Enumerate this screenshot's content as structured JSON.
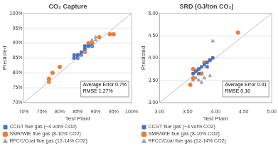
{
  "chart_data": [
    {
      "type": "scatter",
      "title": "CO₂ Capture",
      "x_label": "Test Plant",
      "y_label": "Predicted",
      "xlim": [
        70,
        100
      ],
      "ylim": [
        70,
        100
      ],
      "xticks": [
        {
          "value": 70,
          "label": "70%"
        },
        {
          "value": 75,
          "label": "75%"
        },
        {
          "value": 80,
          "label": "80%"
        },
        {
          "value": 85,
          "label": "85%"
        },
        {
          "value": 90,
          "label": "90%"
        },
        {
          "value": 95,
          "label": "95%"
        },
        {
          "value": 100,
          "label": "100%"
        }
      ],
      "yticks": [
        {
          "value": 70,
          "label": "70%"
        },
        {
          "value": 75,
          "label": "75%"
        },
        {
          "value": 80,
          "label": "80%"
        },
        {
          "value": 85,
          "label": "85%"
        },
        {
          "value": 90,
          "label": "90%"
        },
        {
          "value": 95,
          "label": "95%"
        },
        {
          "value": 100,
          "label": "100%"
        }
      ],
      "grid": true,
      "legend": "bottom",
      "annotation": [
        "Average Error 0.7%",
        "RMSE 1.27%"
      ],
      "reference_line": {
        "x": [
          70,
          100
        ],
        "y": [
          70,
          100
        ]
      },
      "series": [
        {
          "name": "CCGT flue gas (~4 vol% CO2)",
          "color": "#4472c4",
          "marker": "square",
          "x": [
            84,
            85,
            86,
            86,
            87,
            88,
            89,
            85,
            84,
            87
          ],
          "values": [
            85,
            85,
            86,
            87,
            88,
            89,
            89,
            86,
            86,
            89
          ]
        },
        {
          "name": "SMR/WtE flue gas (8-10% CO2)",
          "color": "#ed7d31",
          "marker": "circle",
          "x": [
            77,
            77,
            78,
            80,
            87,
            89,
            91,
            94,
            95,
            85,
            88
          ],
          "values": [
            78,
            77,
            80,
            82,
            87,
            90,
            92,
            93,
            93,
            86,
            90
          ]
        },
        {
          "name": "RFCC/Coal flue gas (12-14% CO2)",
          "color": "#a5a5a5",
          "marker": "triangle",
          "x": [
            88,
            89,
            89,
            90,
            90,
            91,
            84
          ],
          "values": [
            89,
            91,
            90,
            92,
            91,
            92,
            85
          ]
        }
      ]
    },
    {
      "type": "scatter",
      "title": "SRD (GJ/ton CO₂)",
      "x_label": "Test Plant",
      "y_label": "Predicted",
      "xlim": [
        3,
        5
      ],
      "ylim": [
        3,
        5
      ],
      "xticks": [
        {
          "value": 3,
          "label": "3.00"
        },
        {
          "value": 3.5,
          "label": "3.50"
        },
        {
          "value": 4,
          "label": "4.00"
        },
        {
          "value": 4.5,
          "label": "4.50"
        },
        {
          "value": 5,
          "label": "5.00"
        }
      ],
      "yticks": [
        {
          "value": 3,
          "label": "3.00"
        },
        {
          "value": 3.5,
          "label": "3.50"
        },
        {
          "value": 4,
          "label": "4.00"
        },
        {
          "value": 4.5,
          "label": "4.50"
        },
        {
          "value": 5,
          "label": "5.00"
        }
      ],
      "grid": true,
      "legend": "bottom",
      "annotation": [
        "Average Error 0.01",
        "RMSE 0.16"
      ],
      "reference_line": {
        "x": [
          3,
          5
        ],
        "y": [
          3,
          5
        ]
      },
      "series": [
        {
          "name": "CCGT flue gas (~4 vol% CO2)",
          "color": "#4472c4",
          "marker": "square",
          "x": [
            3.6,
            3.65,
            3.7,
            3.75,
            3.8,
            3.85,
            3.9,
            3.95,
            3.7,
            3.85
          ],
          "values": [
            3.65,
            3.7,
            3.75,
            3.8,
            3.85,
            3.9,
            3.95,
            4.0,
            3.65,
            3.8
          ]
        },
        {
          "name": "SMR/WtE flue gas (8-10% CO2)",
          "color": "#ed7d31",
          "marker": "circle",
          "x": [
            3.55,
            3.6,
            3.65,
            3.7,
            3.8,
            3.9,
            4.4,
            3.6,
            3.75
          ],
          "values": [
            3.4,
            3.55,
            3.7,
            3.75,
            3.9,
            3.95,
            4.57,
            3.75,
            3.65
          ]
        },
        {
          "name": "RFCC/Coal flue gas (12-14% CO2)",
          "color": "#a5a5a5",
          "marker": "triangle",
          "x": [
            3.6,
            3.7,
            3.75,
            3.8,
            3.9,
            3.95,
            3.65
          ],
          "values": [
            3.5,
            3.5,
            3.45,
            3.55,
            3.6,
            4.38,
            3.55
          ]
        }
      ]
    }
  ]
}
